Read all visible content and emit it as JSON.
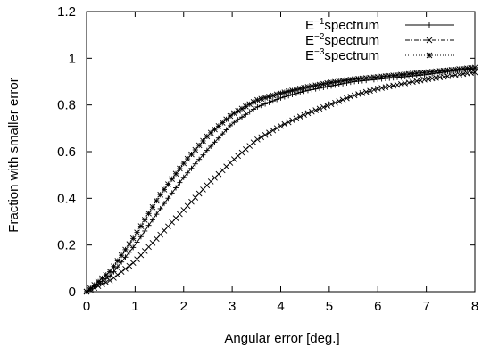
{
  "chart_data": {
    "type": "line",
    "title": "",
    "xlabel": "Angular error [deg.]",
    "ylabel": "Fraction with smaller error",
    "xlim": [
      0,
      8
    ],
    "ylim": [
      0,
      1.2
    ],
    "x_ticks": [
      "0",
      "1",
      "2",
      "3",
      "4",
      "5",
      "6",
      "7",
      "8"
    ],
    "y_ticks": [
      "0",
      "0.2",
      "0.4",
      "0.6",
      "0.8",
      "1",
      "1.2"
    ],
    "grid": false,
    "legend_position": "top-right",
    "series": [
      {
        "name": "E^-1spectrum",
        "legend_base": "E",
        "legend_sup": "−1",
        "legend_rest": "spectrum",
        "marker": "plus",
        "line_style": "solid",
        "x": [
          0,
          0.5,
          1,
          1.5,
          2,
          2.5,
          3,
          3.5,
          4,
          4.5,
          5,
          5.5,
          6,
          6.5,
          7,
          7.5,
          8
        ],
        "y": [
          0,
          0.07,
          0.2,
          0.35,
          0.49,
          0.61,
          0.72,
          0.79,
          0.83,
          0.86,
          0.88,
          0.9,
          0.91,
          0.92,
          0.93,
          0.945,
          0.955
        ]
      },
      {
        "name": "E^-2spectrum",
        "legend_base": "E",
        "legend_sup": "−2",
        "legend_rest": "spectrum",
        "marker": "x",
        "line_style": "dashdot",
        "x": [
          0,
          0.5,
          1,
          1.5,
          2,
          2.5,
          3,
          3.5,
          4,
          4.5,
          5,
          5.5,
          6,
          6.5,
          7,
          7.5,
          8
        ],
        "y": [
          0,
          0.05,
          0.13,
          0.24,
          0.35,
          0.46,
          0.56,
          0.65,
          0.71,
          0.76,
          0.8,
          0.84,
          0.87,
          0.89,
          0.91,
          0.925,
          0.94
        ]
      },
      {
        "name": "E^-3spectrum",
        "legend_base": "E",
        "legend_sup": "−3",
        "legend_rest": "spectrum",
        "marker": "star",
        "line_style": "dotted",
        "x": [
          0,
          0.5,
          1,
          1.5,
          2,
          2.5,
          3,
          3.5,
          4,
          4.5,
          5,
          5.5,
          6,
          6.5,
          7,
          7.5,
          8
        ],
        "y": [
          0,
          0.09,
          0.24,
          0.41,
          0.55,
          0.67,
          0.76,
          0.82,
          0.85,
          0.875,
          0.895,
          0.91,
          0.92,
          0.93,
          0.94,
          0.95,
          0.96
        ]
      }
    ]
  }
}
